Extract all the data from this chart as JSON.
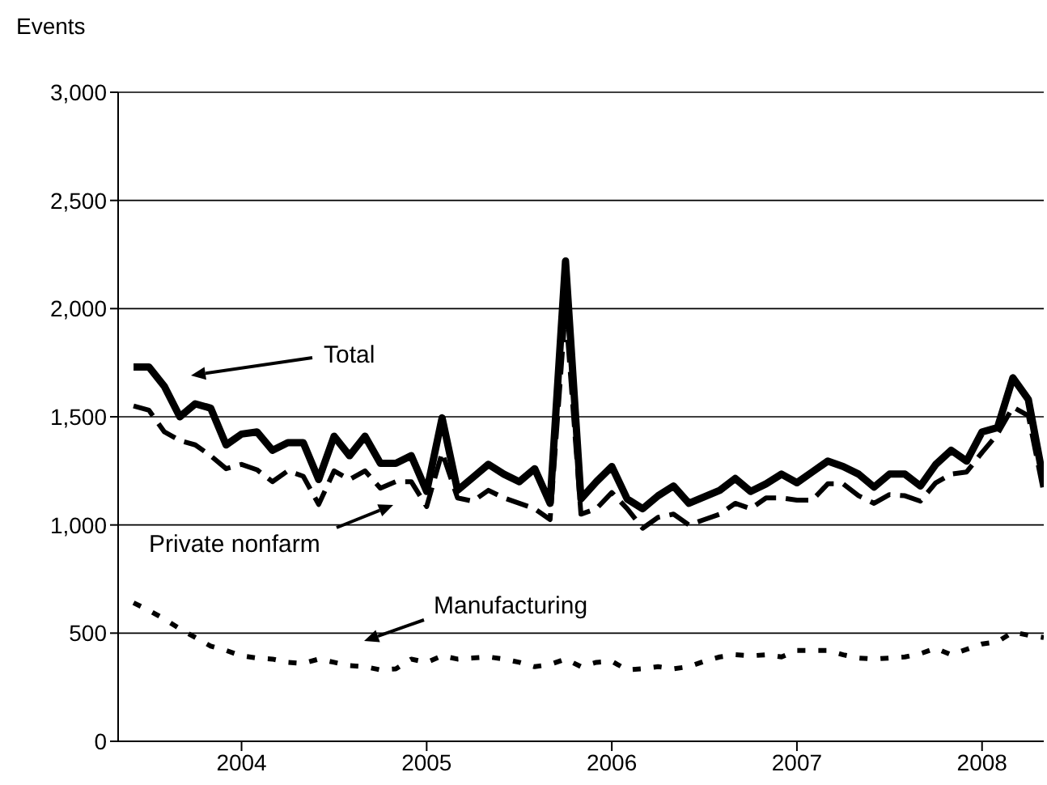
{
  "chart_data": {
    "type": "line",
    "ylabel": "Events",
    "x": [
      "2003-06",
      "2003-07",
      "2003-08",
      "2003-09",
      "2003-10",
      "2003-11",
      "2003-12",
      "2004-01",
      "2004-02",
      "2004-03",
      "2004-04",
      "2004-05",
      "2004-06",
      "2004-07",
      "2004-08",
      "2004-09",
      "2004-10",
      "2004-11",
      "2004-12",
      "2005-01",
      "2005-02",
      "2005-03",
      "2005-04",
      "2005-05",
      "2005-06",
      "2005-07",
      "2005-08",
      "2005-09",
      "2005-10",
      "2005-11",
      "2005-12",
      "2006-01",
      "2006-02",
      "2006-03",
      "2006-04",
      "2006-05",
      "2006-06",
      "2006-07",
      "2006-08",
      "2006-09",
      "2006-10",
      "2006-11",
      "2006-12",
      "2007-01",
      "2007-02",
      "2007-03",
      "2007-04",
      "2007-05",
      "2007-06",
      "2007-07",
      "2007-08",
      "2007-09",
      "2007-10",
      "2007-11",
      "2007-12",
      "2008-01",
      "2008-02",
      "2008-03",
      "2008-04",
      "2008-05"
    ],
    "series": [
      {
        "color": "#000000",
        "line_style": "solid",
        "values": [
          1730,
          1730,
          1640,
          1500,
          1560,
          1540,
          1370,
          1420,
          1430,
          1345,
          1380,
          1380,
          1210,
          1410,
          1320,
          1410,
          1285,
          1285,
          1320,
          1155,
          1495,
          1160,
          1220,
          1280,
          1235,
          1200,
          1260,
          1100,
          2220,
          1120,
          1200,
          1270,
          1120,
          1075,
          1135,
          1180,
          1100,
          1130,
          1160,
          1215,
          1155,
          1190,
          1235,
          1195,
          1245,
          1295,
          1270,
          1235,
          1175,
          1235,
          1235,
          1180,
          1280,
          1345,
          1295,
          1430,
          1450,
          1680,
          1580,
          1200
        ]
      },
      {
        "color": "#000000",
        "line_style": "dashed",
        "values": [
          1550,
          1530,
          1430,
          1390,
          1370,
          1320,
          1260,
          1280,
          1255,
          1200,
          1250,
          1225,
          1095,
          1250,
          1210,
          1250,
          1170,
          1200,
          1200,
          1085,
          1335,
          1125,
          1110,
          1160,
          1125,
          1100,
          1075,
          1025,
          2000,
          1050,
          1075,
          1150,
          1075,
          985,
          1035,
          1050,
          1000,
          1025,
          1050,
          1100,
          1075,
          1125,
          1125,
          1115,
          1115,
          1190,
          1190,
          1135,
          1100,
          1140,
          1135,
          1110,
          1195,
          1235,
          1245,
          1335,
          1420,
          1545,
          1505,
          1150
        ]
      },
      {
        "color": "#000000",
        "line_style": "dotted",
        "values": [
          640,
          605,
          565,
          520,
          480,
          440,
          420,
          395,
          385,
          380,
          365,
          360,
          380,
          365,
          350,
          345,
          330,
          335,
          380,
          365,
          395,
          380,
          385,
          390,
          380,
          365,
          345,
          355,
          380,
          345,
          365,
          370,
          330,
          335,
          345,
          335,
          345,
          370,
          390,
          400,
          395,
          400,
          390,
          420,
          420,
          420,
          400,
          385,
          380,
          385,
          390,
          405,
          430,
          400,
          425,
          450,
          460,
          505,
          490,
          480
        ]
      }
    ],
    "xlim": [
      "2003-05",
      "2008-05"
    ],
    "xticks": [
      "2004",
      "2005",
      "2006",
      "2007",
      "2008"
    ],
    "ylim": [
      0,
      3000
    ],
    "yticks": [
      0,
      {
        "value": 500,
        "label": "500"
      },
      {
        "value": 1000,
        "label": "1,000"
      },
      {
        "value": 1500,
        "label": "1,500"
      },
      {
        "value": 2000,
        "label": "2,000"
      },
      {
        "value": 2500,
        "label": "2,500"
      },
      {
        "value": 3000,
        "label": "3,000"
      }
    ],
    "grid": "y",
    "annotations": [
      "Total",
      "Private nonfarm",
      "Manufacturing"
    ]
  }
}
